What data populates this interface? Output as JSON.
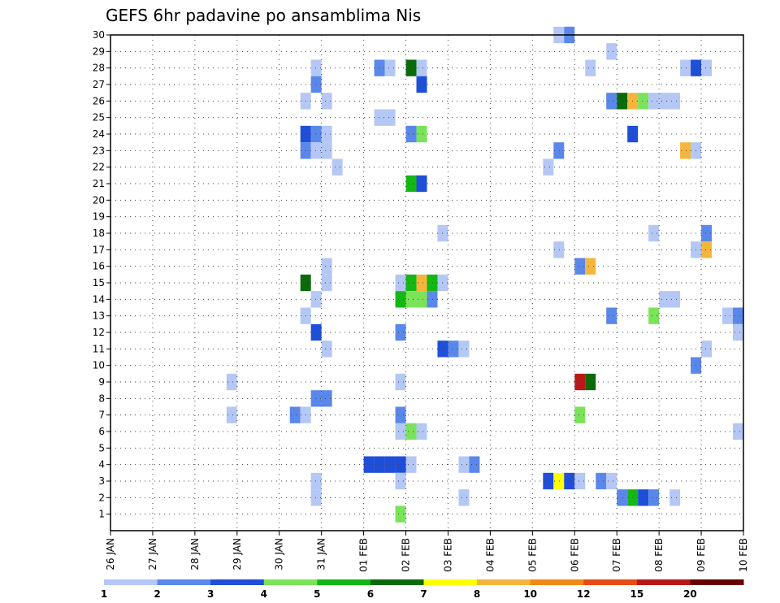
{
  "chart_data": {
    "type": "heatmap",
    "title": "GEFS 6hr padavine po ansamblima Nis",
    "xlabel": "",
    "ylabel": "",
    "x_start": "26 JAN",
    "x_end": "10 FEB",
    "x_ticks": [
      "26 JAN",
      "27 JAN",
      "28 JAN",
      "29 JAN",
      "30 JAN",
      "31 JAN",
      "01 FEB",
      "02 FEB",
      "03 FEB",
      "04 FEB",
      "05 FEB",
      "06 FEB",
      "07 FEB",
      "08 FEB",
      "09 FEB",
      "10 FEB"
    ],
    "time_step_hours": 6,
    "y_ticks": [
      1,
      2,
      3,
      4,
      5,
      6,
      7,
      8,
      9,
      10,
      11,
      12,
      13,
      14,
      15,
      16,
      17,
      18,
      19,
      20,
      21,
      22,
      23,
      24,
      25,
      26,
      27,
      28,
      29,
      30
    ],
    "ylim": [
      0,
      30
    ],
    "grid": true,
    "legend": {
      "placement": "bottom",
      "levels": [
        "1",
        "2",
        "3",
        "4",
        "5",
        "6",
        "7",
        "8",
        "10",
        "12",
        "15",
        "20"
      ],
      "colors": [
        "#b4c7f5",
        "#5a87ea",
        "#1f4ed8",
        "#7be35a",
        "#14b814",
        "#0b6b0b",
        "#ffff00",
        "#f5b53d",
        "#f08a16",
        "#e84c14",
        "#b81818",
        "#6b0000"
      ]
    },
    "cells": [
      {
        "member": 30,
        "time": "05 FEB 12Z",
        "cls": 0
      },
      {
        "member": 30,
        "time": "05 FEB 18Z",
        "cls": 1
      },
      {
        "member": 29,
        "time": "06 FEB 18Z",
        "cls": 0
      },
      {
        "member": 28,
        "time": "30 JAN 18Z",
        "cls": 0
      },
      {
        "member": 28,
        "time": "01 FEB 06Z",
        "cls": 1
      },
      {
        "member": 28,
        "time": "01 FEB 12Z",
        "cls": 0
      },
      {
        "member": 28,
        "time": "02 FEB 00Z",
        "cls": 5
      },
      {
        "member": 28,
        "time": "02 FEB 06Z",
        "cls": 0
      },
      {
        "member": 28,
        "time": "06 FEB 06Z",
        "cls": 0
      },
      {
        "member": 28,
        "time": "08 FEB 12Z",
        "cls": 0
      },
      {
        "member": 28,
        "time": "08 FEB 18Z",
        "cls": 2
      },
      {
        "member": 28,
        "time": "09 FEB 00Z",
        "cls": 0
      },
      {
        "member": 27,
        "time": "30 JAN 18Z",
        "cls": 1
      },
      {
        "member": 27,
        "time": "02 FEB 06Z",
        "cls": 2
      },
      {
        "member": 26,
        "time": "30 JAN 12Z",
        "cls": 0
      },
      {
        "member": 26,
        "time": "31 JAN 00Z",
        "cls": 0
      },
      {
        "member": 26,
        "time": "06 FEB 18Z",
        "cls": 1
      },
      {
        "member": 26,
        "time": "07 FEB 00Z",
        "cls": 5
      },
      {
        "member": 26,
        "time": "07 FEB 06Z",
        "cls": 7
      },
      {
        "member": 26,
        "time": "07 FEB 12Z",
        "cls": 3
      },
      {
        "member": 26,
        "time": "07 FEB 18Z",
        "cls": 0
      },
      {
        "member": 26,
        "time": "08 FEB 00Z",
        "cls": 0
      },
      {
        "member": 26,
        "time": "08 FEB 06Z",
        "cls": 0
      },
      {
        "member": 25,
        "time": "01 FEB 06Z",
        "cls": 0
      },
      {
        "member": 25,
        "time": "01 FEB 12Z",
        "cls": 0
      },
      {
        "member": 24,
        "time": "30 JAN 12Z",
        "cls": 2
      },
      {
        "member": 24,
        "time": "30 JAN 18Z",
        "cls": 1
      },
      {
        "member": 24,
        "time": "31 JAN 00Z",
        "cls": 0
      },
      {
        "member": 24,
        "time": "02 FEB 00Z",
        "cls": 1
      },
      {
        "member": 24,
        "time": "02 FEB 06Z",
        "cls": 3
      },
      {
        "member": 24,
        "time": "07 FEB 06Z",
        "cls": 2
      },
      {
        "member": 23,
        "time": "30 JAN 12Z",
        "cls": 1
      },
      {
        "member": 23,
        "time": "30 JAN 18Z",
        "cls": 0
      },
      {
        "member": 23,
        "time": "31 JAN 00Z",
        "cls": 0
      },
      {
        "member": 23,
        "time": "05 FEB 12Z",
        "cls": 1
      },
      {
        "member": 23,
        "time": "08 FEB 12Z",
        "cls": 7
      },
      {
        "member": 23,
        "time": "08 FEB 18Z",
        "cls": 0
      },
      {
        "member": 22,
        "time": "31 JAN 06Z",
        "cls": 0
      },
      {
        "member": 22,
        "time": "05 FEB 06Z",
        "cls": 0
      },
      {
        "member": 21,
        "time": "02 FEB 00Z",
        "cls": 4
      },
      {
        "member": 21,
        "time": "02 FEB 06Z",
        "cls": 2
      },
      {
        "member": 18,
        "time": "02 FEB 18Z",
        "cls": 0
      },
      {
        "member": 18,
        "time": "07 FEB 18Z",
        "cls": 0
      },
      {
        "member": 18,
        "time": "09 FEB 00Z",
        "cls": 1
      },
      {
        "member": 17,
        "time": "05 FEB 12Z",
        "cls": 0
      },
      {
        "member": 17,
        "time": "08 FEB 18Z",
        "cls": 0
      },
      {
        "member": 17,
        "time": "09 FEB 00Z",
        "cls": 7
      },
      {
        "member": 16,
        "time": "31 JAN 00Z",
        "cls": 0
      },
      {
        "member": 16,
        "time": "06 FEB 00Z",
        "cls": 1
      },
      {
        "member": 16,
        "time": "06 FEB 06Z",
        "cls": 7
      },
      {
        "member": 15,
        "time": "30 JAN 12Z",
        "cls": 5
      },
      {
        "member": 15,
        "time": "31 JAN 00Z",
        "cls": 0
      },
      {
        "member": 15,
        "time": "01 FEB 18Z",
        "cls": 0
      },
      {
        "member": 15,
        "time": "02 FEB 00Z",
        "cls": 4
      },
      {
        "member": 15,
        "time": "02 FEB 06Z",
        "cls": 7
      },
      {
        "member": 15,
        "time": "02 FEB 12Z",
        "cls": 4
      },
      {
        "member": 15,
        "time": "02 FEB 18Z",
        "cls": 0
      },
      {
        "member": 14,
        "time": "30 JAN 18Z",
        "cls": 0
      },
      {
        "member": 14,
        "time": "01 FEB 18Z",
        "cls": 4
      },
      {
        "member": 14,
        "time": "02 FEB 00Z",
        "cls": 3
      },
      {
        "member": 14,
        "time": "02 FEB 06Z",
        "cls": 3
      },
      {
        "member": 14,
        "time": "02 FEB 12Z",
        "cls": 1
      },
      {
        "member": 14,
        "time": "08 FEB 00Z",
        "cls": 0
      },
      {
        "member": 14,
        "time": "08 FEB 06Z",
        "cls": 0
      },
      {
        "member": 13,
        "time": "30 JAN 12Z",
        "cls": 0
      },
      {
        "member": 13,
        "time": "06 FEB 18Z",
        "cls": 1
      },
      {
        "member": 13,
        "time": "07 FEB 18Z",
        "cls": 3
      },
      {
        "member": 13,
        "time": "09 FEB 12Z",
        "cls": 0
      },
      {
        "member": 13,
        "time": "09 FEB 18Z",
        "cls": 1
      },
      {
        "member": 12,
        "time": "30 JAN 18Z",
        "cls": 2
      },
      {
        "member": 12,
        "time": "01 FEB 18Z",
        "cls": 1
      },
      {
        "member": 12,
        "time": "09 FEB 18Z",
        "cls": 0
      },
      {
        "member": 11,
        "time": "31 JAN 00Z",
        "cls": 0
      },
      {
        "member": 11,
        "time": "02 FEB 18Z",
        "cls": 2
      },
      {
        "member": 11,
        "time": "03 FEB 00Z",
        "cls": 1
      },
      {
        "member": 11,
        "time": "03 FEB 06Z",
        "cls": 0
      },
      {
        "member": 11,
        "time": "09 FEB 00Z",
        "cls": 0
      },
      {
        "member": 10,
        "time": "08 FEB 18Z",
        "cls": 1
      },
      {
        "member": 9,
        "time": "28 JAN 18Z",
        "cls": 0
      },
      {
        "member": 9,
        "time": "01 FEB 18Z",
        "cls": 0
      },
      {
        "member": 9,
        "time": "06 FEB 00Z",
        "cls": 10
      },
      {
        "member": 9,
        "time": "06 FEB 06Z",
        "cls": 5
      },
      {
        "member": 8,
        "time": "30 JAN 18Z",
        "cls": 1
      },
      {
        "member": 8,
        "time": "31 JAN 00Z",
        "cls": 1
      },
      {
        "member": 7,
        "time": "28 JAN 18Z",
        "cls": 0
      },
      {
        "member": 7,
        "time": "30 JAN 06Z",
        "cls": 1
      },
      {
        "member": 7,
        "time": "30 JAN 12Z",
        "cls": 0
      },
      {
        "member": 7,
        "time": "01 FEB 18Z",
        "cls": 1
      },
      {
        "member": 7,
        "time": "06 FEB 00Z",
        "cls": 3
      },
      {
        "member": 6,
        "time": "01 FEB 18Z",
        "cls": 0
      },
      {
        "member": 6,
        "time": "02 FEB 00Z",
        "cls": 3
      },
      {
        "member": 6,
        "time": "02 FEB 06Z",
        "cls": 0
      },
      {
        "member": 6,
        "time": "09 FEB 18Z",
        "cls": 0
      },
      {
        "member": 4,
        "time": "01 FEB 00Z",
        "cls": 2
      },
      {
        "member": 4,
        "time": "01 FEB 06Z",
        "cls": 2
      },
      {
        "member": 4,
        "time": "01 FEB 12Z",
        "cls": 2
      },
      {
        "member": 4,
        "time": "01 FEB 18Z",
        "cls": 2
      },
      {
        "member": 4,
        "time": "02 FEB 00Z",
        "cls": 0
      },
      {
        "member": 4,
        "time": "03 FEB 06Z",
        "cls": 0
      },
      {
        "member": 4,
        "time": "03 FEB 12Z",
        "cls": 1
      },
      {
        "member": 3,
        "time": "30 JAN 18Z",
        "cls": 0
      },
      {
        "member": 3,
        "time": "01 FEB 18Z",
        "cls": 0
      },
      {
        "member": 3,
        "time": "05 FEB 06Z",
        "cls": 2
      },
      {
        "member": 3,
        "time": "05 FEB 12Z",
        "cls": 6
      },
      {
        "member": 3,
        "time": "05 FEB 18Z",
        "cls": 2
      },
      {
        "member": 3,
        "time": "06 FEB 00Z",
        "cls": 0
      },
      {
        "member": 3,
        "time": "06 FEB 12Z",
        "cls": 1
      },
      {
        "member": 3,
        "time": "06 FEB 18Z",
        "cls": 0
      },
      {
        "member": 2,
        "time": "30 JAN 18Z",
        "cls": 0
      },
      {
        "member": 2,
        "time": "03 FEB 06Z",
        "cls": 0
      },
      {
        "member": 2,
        "time": "07 FEB 00Z",
        "cls": 1
      },
      {
        "member": 2,
        "time": "07 FEB 06Z",
        "cls": 4
      },
      {
        "member": 2,
        "time": "07 FEB 12Z",
        "cls": 2
      },
      {
        "member": 2,
        "time": "07 FEB 18Z",
        "cls": 1
      },
      {
        "member": 2,
        "time": "08 FEB 06Z",
        "cls": 0
      },
      {
        "member": 1,
        "time": "01 FEB 18Z",
        "cls": 3
      }
    ]
  }
}
